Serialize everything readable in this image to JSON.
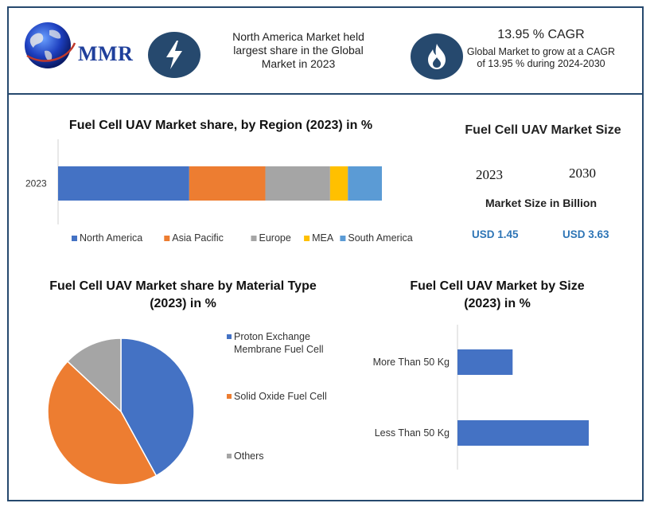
{
  "header": {
    "logo_text": "MMR",
    "info1": "North America Market held largest share in the Global Market in 2023",
    "cagr_title": "13.95 % CAGR",
    "cagr_body": "Global Market to grow at a CAGR of 13.95 % during 2024-2030",
    "icons": [
      "lightning-icon",
      "flame-icon",
      "globe-icon"
    ]
  },
  "market_size": {
    "title": "Fuel Cell UAV Market Size",
    "year_a": "2023",
    "year_b": "2030",
    "subtitle": "Market Size in Billion",
    "value_a": "USD 1.45",
    "value_b": "USD 3.63",
    "value_color": "#2e75b6"
  },
  "colors": {
    "north_america": "#4472c4",
    "asia_pacific": "#ed7d31",
    "europe": "#a5a5a5",
    "mea": "#ffc000",
    "south_america": "#5b9bd5",
    "frame": "#26496e"
  },
  "chart_data": [
    {
      "type": "bar",
      "orientation": "horizontal-stacked",
      "title": "Fuel Cell UAV Market share, by Region (2023) in %",
      "categories": [
        "2023"
      ],
      "series": [
        {
          "name": "North America",
          "values": [
            40.5
          ],
          "color": "#4472c4"
        },
        {
          "name": "Asia Pacific",
          "values": [
            23.5
          ],
          "color": "#ed7d31"
        },
        {
          "name": "Europe",
          "values": [
            20
          ],
          "color": "#a5a5a5"
        },
        {
          "name": "MEA",
          "values": [
            5.5
          ],
          "color": "#ffc000"
        },
        {
          "name": "South America",
          "values": [
            10.5
          ],
          "color": "#5b9bd5"
        }
      ],
      "legend": "bottom"
    },
    {
      "type": "pie",
      "title": "Fuel Cell UAV Market share by Material Type (2023) in %",
      "labels": [
        "Proton Exchange Membrane Fuel Cell",
        "Solid Oxide Fuel Cell",
        "Others"
      ],
      "values": [
        42,
        45,
        13
      ],
      "colors": [
        "#4472c4",
        "#ed7d31",
        "#a5a5a5"
      ],
      "legend": "right"
    },
    {
      "type": "bar",
      "orientation": "horizontal",
      "title": "Fuel Cell UAV Market by Size (2023) in %",
      "categories": [
        "More Than 50 Kg",
        "Less Than 50 Kg"
      ],
      "values": [
        42,
        100
      ],
      "color": "#4472c4"
    }
  ]
}
